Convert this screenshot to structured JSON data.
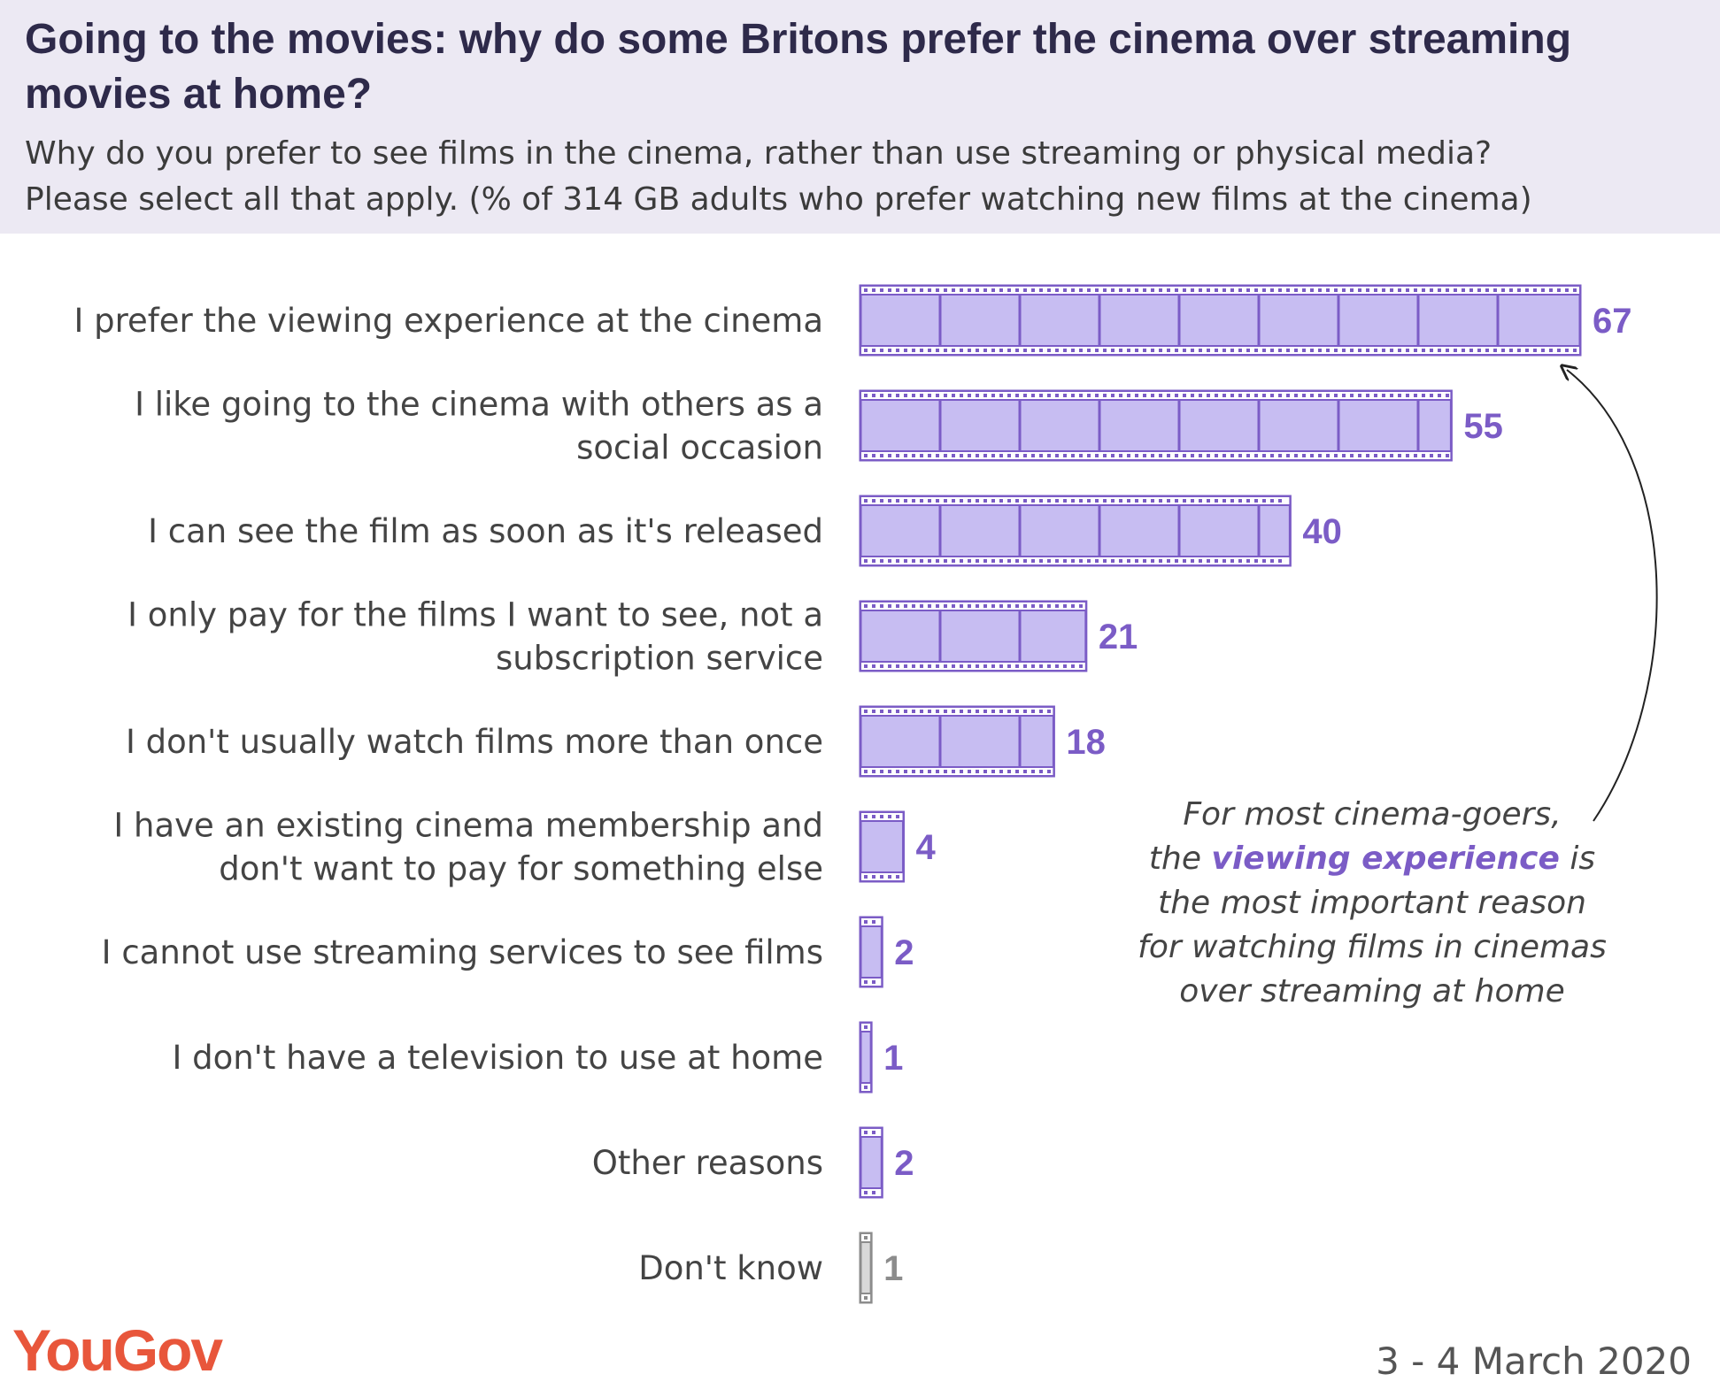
{
  "header": {
    "title": "Going to the movies: why do some Britons prefer the cinema over streaming movies at home?",
    "subtitle": "Why do you prefer to see films in the cinema, rather than use streaming or physical media?\nPlease select all that apply. (% of 314 GB adults who prefer watching new films at the cinema)"
  },
  "chart_data": {
    "type": "bar",
    "orientation": "horizontal",
    "categories": [
      "I prefer the viewing experience at the cinema",
      "I like going to the cinema with others as a social occasion",
      "I can see the film as soon as it's released",
      "I only pay for the films I want to see, not a subscription service",
      "I don't usually watch films more than once",
      "I have an existing cinema membership and don't want to pay for something else",
      "I cannot use streaming services to see films",
      "I don't have a television to use at home",
      "Other reasons",
      "Don't know"
    ],
    "category_lines": [
      [
        "I prefer the viewing experience at the cinema"
      ],
      [
        "I like going to the cinema with others as a",
        "social occasion"
      ],
      [
        "I can see the film as soon as it's released"
      ],
      [
        "I only pay for the films I want to see, not a",
        "subscription service"
      ],
      [
        "I don't usually watch films more than once"
      ],
      [
        "I have an existing cinema membership and",
        "don't want to pay for something else"
      ],
      [
        "I cannot use streaming services to see films"
      ],
      [
        "I don't have a television to use at home"
      ],
      [
        "Other reasons"
      ],
      [
        "Don't know"
      ]
    ],
    "values": [
      67,
      55,
      40,
      21,
      18,
      4,
      2,
      1,
      2,
      1
    ],
    "xlim": [
      0,
      67
    ],
    "grid": false,
    "legend": "none",
    "bar_style": "film strip",
    "colors": {
      "bar_fill": "#c7bdf2",
      "bar_stroke": "#7b5cc6",
      "value_text": "#7b5cc6",
      "dont_know_fill": "#d9d9d9",
      "dont_know_stroke": "#8c8c8c",
      "dont_know_text": "#8c8c8c"
    }
  },
  "annotation": {
    "pre": "For most cinema-goers,\nthe ",
    "emphasis": "viewing experience",
    "post": " is\nthe most important reason\nfor watching films in cinemas\nover streaming at home"
  },
  "footer": {
    "logo": "YouGov",
    "date": "3 - 4 March 2020"
  }
}
